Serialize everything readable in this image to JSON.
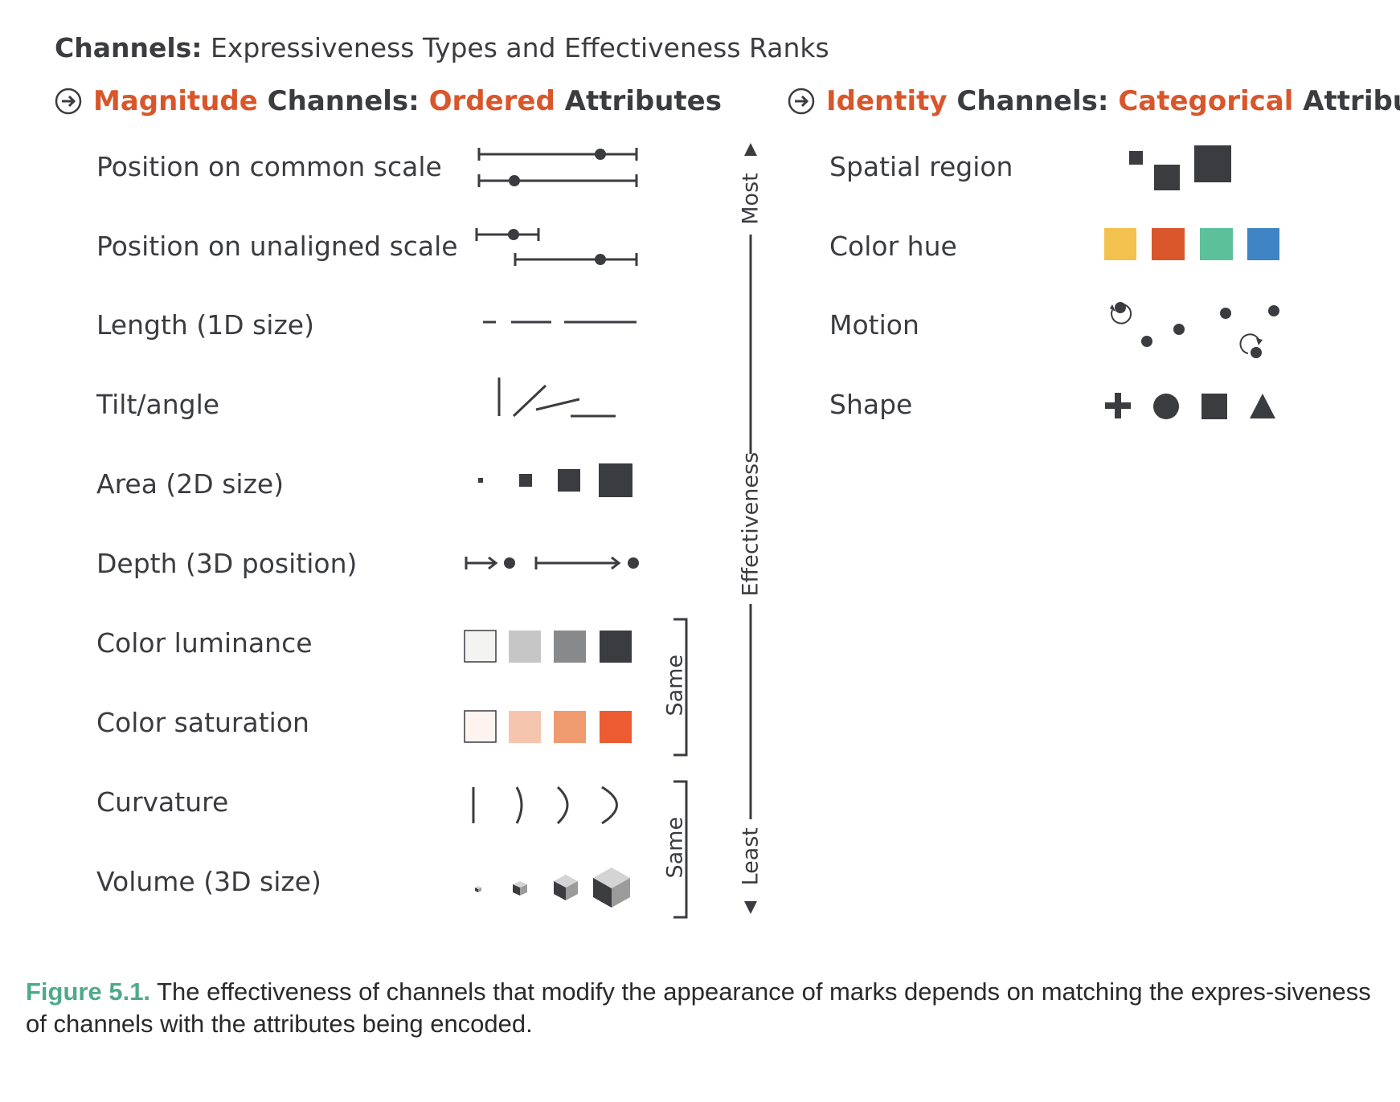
{
  "title": {
    "bold": "Channels:",
    "rest": " Expressiveness Types and Effectiveness Ranks"
  },
  "magnitude_header": {
    "part1": "Magnitude",
    "part2": " Channels: ",
    "part3": "Ordered",
    "part4": " Attributes"
  },
  "identity_header": {
    "part1": "Identity",
    "part2": " Channels: ",
    "part3": "Categorical",
    "part4": " Attributes"
  },
  "magnitude_rows": [
    "Position on common scale",
    "Position on unaligned scale",
    "Length (1D size)",
    "Tilt/angle",
    "Area (2D size)",
    "Depth (3D position)",
    "Color luminance",
    "Color saturation",
    "Curvature",
    "Volume (3D size)"
  ],
  "identity_rows": [
    "Spatial region",
    "Color hue",
    "Motion",
    "Shape"
  ],
  "effectiveness_axis": {
    "top": "Most",
    "middle": "Effectiveness",
    "bottom": "Least"
  },
  "same_brackets": [
    "Same",
    "Same"
  ],
  "colors": {
    "ink": "#3b3c40",
    "accent": "#d9562b",
    "luminance": [
      "#f3f4f2",
      "#c6c6c7",
      "#88898b",
      "#3b3c40"
    ],
    "saturation": [
      "#fdf3ef",
      "#f5c5ad",
      "#f09a70",
      "#ec5b32"
    ],
    "hues": [
      "#f2c14e",
      "#d9562b",
      "#5cc09b",
      "#3f84c4"
    ]
  },
  "caption": {
    "label": "Figure 5.1.",
    "text": " The effectiveness of channels that modify the appearance of marks depends on matching the expres-siveness of channels with the attributes being encoded."
  }
}
